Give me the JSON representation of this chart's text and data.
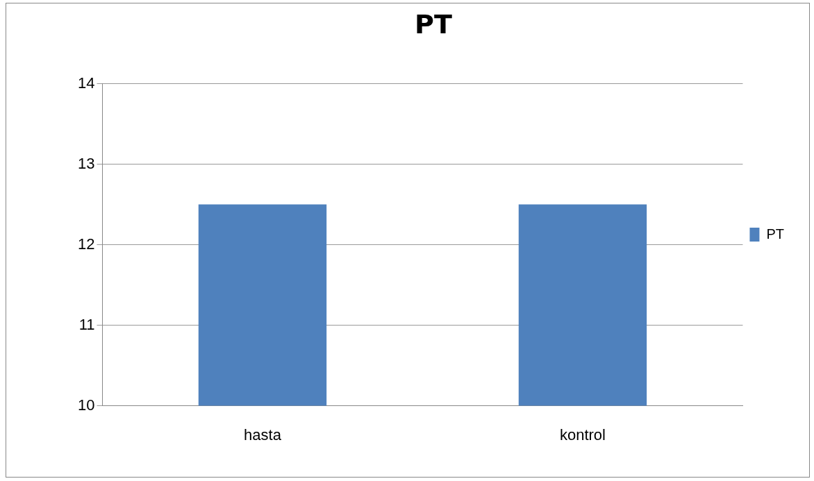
{
  "chart_data": {
    "type": "bar",
    "title": "PT",
    "categories": [
      "hasta",
      "kontrol"
    ],
    "series": [
      {
        "name": "PT",
        "color": "#4f81bd",
        "values": [
          12.5,
          12.5
        ]
      }
    ],
    "ylim": [
      10,
      14
    ],
    "yticks": [
      10,
      11,
      12,
      13,
      14
    ],
    "grid": "y",
    "legend": "right"
  }
}
